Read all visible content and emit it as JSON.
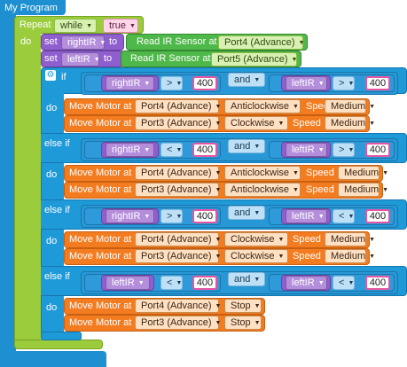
{
  "program_title": "My Program",
  "repeat": {
    "label": "Repeat",
    "mode": "while",
    "condition": "true",
    "do_label": "do"
  },
  "set_blocks": [
    {
      "set_label": "set",
      "variable": "rightIR",
      "to_label": "to",
      "sensor_label": "Read IR Sensor at",
      "port": "Port4 (Advance)"
    },
    {
      "set_label": "set",
      "variable": "leftIR",
      "to_label": "to",
      "sensor_label": "Read IR Sensor at",
      "port": "Port5 (Advance)"
    }
  ],
  "if_label": "if",
  "else_if_label": "else if",
  "do_label": "do",
  "motor_label": "Move Motor at",
  "speed_label": "Speed",
  "branches": [
    {
      "cond": {
        "left_var": "rightIR",
        "left_op": ">",
        "left_val": "400",
        "logic": "and",
        "right_var": "leftIR",
        "right_op": ">",
        "right_val": "400"
      },
      "motors": [
        {
          "port": "Port4 (Advance)",
          "direction": "Anticlockwise",
          "speed": "Medium"
        },
        {
          "port": "Port3 (Advance)",
          "direction": "Clockwise",
          "speed": "Medium"
        }
      ]
    },
    {
      "cond": {
        "left_var": "rightIR",
        "left_op": "<",
        "left_val": "400",
        "logic": "and",
        "right_var": "leftIR",
        "right_op": ">",
        "right_val": "400"
      },
      "motors": [
        {
          "port": "Port4 (Advance)",
          "direction": "Anticlockwise",
          "speed": "Medium"
        },
        {
          "port": "Port3 (Advance)",
          "direction": "Anticlockwise",
          "speed": "Medium"
        }
      ]
    },
    {
      "cond": {
        "left_var": "rightIR",
        "left_op": ">",
        "left_val": "400",
        "logic": "and",
        "right_var": "leftIR",
        "right_op": "<",
        "right_val": "400"
      },
      "motors": [
        {
          "port": "Port4 (Advance)",
          "direction": "Clockwise",
          "speed": "Medium"
        },
        {
          "port": "Port3 (Advance)",
          "direction": "Clockwise",
          "speed": "Medium"
        }
      ]
    },
    {
      "cond": {
        "left_var": "leftIR",
        "left_op": "<",
        "left_val": "400",
        "logic": "and",
        "right_var": "leftIR",
        "right_op": "<",
        "right_val": "400"
      },
      "motors": [
        {
          "port": "Port4 (Advance)",
          "direction": "Stop"
        },
        {
          "port": "Port3 (Advance)",
          "direction": "Stop"
        }
      ]
    }
  ],
  "colors": {
    "program": "#1e8fd0",
    "loop": "#9bcc3c",
    "if": "#1f9ad8",
    "motor": "#f47c20",
    "variable": "#8f5fcf",
    "sensor": "#4fb84a"
  }
}
